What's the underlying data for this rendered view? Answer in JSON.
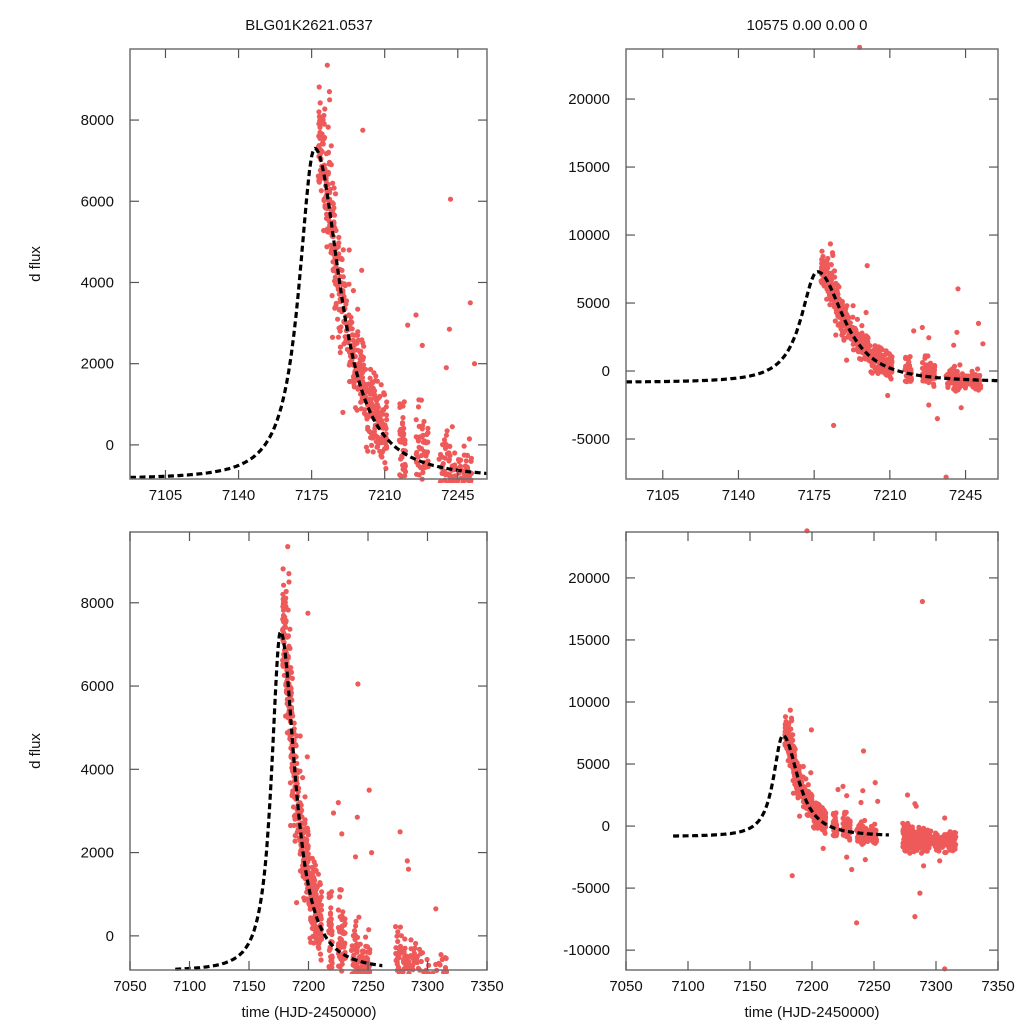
{
  "figure": {
    "object_name": "BLG01K2621.0537",
    "fit_summary": "10575  0.00  0.00  0",
    "point_color": "#ee5a5a",
    "model_color": "#000000"
  },
  "chart_data": [
    {
      "id": "top-left",
      "type": "scatter",
      "title": "BLG01K2621.0537",
      "xlabel": "",
      "ylabel": "d flux",
      "xlim": [
        7088,
        7259
      ],
      "ylim": [
        -840,
        9750
      ],
      "xticks": [
        7105,
        7140,
        7175,
        7210,
        7245
      ],
      "xtick_labels": [
        "7105",
        "7140",
        "7175",
        "7210",
        "7245"
      ],
      "yticks": [
        0,
        2000,
        4000,
        6000,
        8000
      ],
      "ytick_labels": [
        "0",
        "2000",
        "4000",
        "6000",
        "8000"
      ],
      "grid": false,
      "legend": "none",
      "model": {
        "label": "microlensing fit",
        "t0": 7176.5,
        "peak": 7300,
        "baseline": -840,
        "tE_rise": 9.5,
        "tE_fall": 11.5,
        "style": "dashed",
        "x_range": [
          7088,
          7259
        ]
      },
      "series_ref": "observations"
    },
    {
      "id": "top-right",
      "type": "scatter",
      "title": "10575  0.00  0.00  0",
      "xlabel": "",
      "ylabel": "",
      "xlim": [
        7088,
        7260
      ],
      "ylim": [
        -7940,
        23680
      ],
      "xticks": [
        7105,
        7140,
        7175,
        7210,
        7245
      ],
      "xtick_labels": [
        "7105",
        "7140",
        "7175",
        "7210",
        "7245"
      ],
      "yticks": [
        -5000,
        0,
        5000,
        10000,
        15000,
        20000
      ],
      "ytick_labels": [
        "-5000",
        "0",
        "5000",
        "10000",
        "15000",
        "20000"
      ],
      "grid": false,
      "legend": "none",
      "model": {
        "label": "microlensing fit",
        "t0": 7176.5,
        "peak": 7300,
        "baseline": -840,
        "tE_rise": 9.5,
        "tE_fall": 11.5,
        "style": "dashed",
        "x_range": [
          7088,
          7260
        ]
      },
      "series_ref": "observations"
    },
    {
      "id": "bottom-left",
      "type": "scatter",
      "title": "",
      "xlabel": "time (HJD-2450000)",
      "ylabel": "d flux",
      "xlim": [
        7050,
        7350
      ],
      "ylim": [
        -820,
        9700
      ],
      "xticks": [
        7050,
        7100,
        7150,
        7200,
        7250,
        7300,
        7350
      ],
      "xtick_labels": [
        "7050",
        "7100",
        "7150",
        "7200",
        "7250",
        "7300",
        "7350"
      ],
      "yticks": [
        0,
        2000,
        4000,
        6000,
        8000
      ],
      "ytick_labels": [
        "0",
        "2000",
        "4000",
        "6000",
        "8000"
      ],
      "grid": false,
      "legend": "none",
      "model": {
        "label": "microlensing fit",
        "t0": 7176.5,
        "peak": 7300,
        "baseline": -840,
        "tE_rise": 9.5,
        "tE_fall": 11.5,
        "style": "dashed",
        "x_range": [
          7088,
          7262
        ]
      },
      "series_ref": "observations"
    },
    {
      "id": "bottom-right",
      "type": "scatter",
      "title": "",
      "xlabel": "time (HJD-2450000)",
      "ylabel": "",
      "xlim": [
        7050,
        7350
      ],
      "ylim": [
        -11600,
        23700
      ],
      "xticks": [
        7050,
        7100,
        7150,
        7200,
        7250,
        7300,
        7350
      ],
      "xtick_labels": [
        "7050",
        "7100",
        "7150",
        "7200",
        "7250",
        "7300",
        "7350"
      ],
      "yticks": [
        -10000,
        -5000,
        0,
        5000,
        10000,
        15000,
        20000
      ],
      "ytick_labels": [
        "-10000",
        "-5000",
        "0",
        "5000",
        "10000",
        "15000",
        "20000"
      ],
      "grid": false,
      "legend": "none",
      "model": {
        "label": "microlensing fit",
        "t0": 7176.5,
        "peak": 7300,
        "baseline": -840,
        "tE_rise": 9.5,
        "tE_fall": 11.5,
        "style": "dashed",
        "x_range": [
          7088,
          7262
        ]
      },
      "series_ref": "observations"
    }
  ],
  "observations": {
    "description": "observed photometry points (HJD-2450000, d flux); clusters are nightly groups with spread",
    "clusters": [
      {
        "t": [
          7178,
          7180
        ],
        "center_offset": 300,
        "spread": 600,
        "n": 40
      },
      {
        "t": [
          7180,
          7183
        ],
        "center_offset": 200,
        "spread": 700,
        "n": 50
      },
      {
        "t": [
          7183,
          7186
        ],
        "center_offset": 0,
        "spread": 800,
        "n": 50
      },
      {
        "t": [
          7186,
          7189
        ],
        "center_offset": 0,
        "spread": 700,
        "n": 40
      },
      {
        "t": [
          7189,
          7193
        ],
        "center_offset": 100,
        "spread": 600,
        "n": 40
      },
      {
        "t": [
          7193,
          7196
        ],
        "center_offset": 150,
        "spread": 500,
        "n": 40
      },
      {
        "t": [
          7196,
          7199
        ],
        "center_offset": 200,
        "spread": 550,
        "n": 35
      },
      {
        "t": [
          7199,
          7202
        ],
        "center_offset": 300,
        "spread": 550,
        "n": 40
      },
      {
        "t": [
          7202,
          7206
        ],
        "center_offset": 250,
        "spread": 500,
        "n": 60
      },
      {
        "t": [
          7206,
          7211
        ],
        "center_offset": 150,
        "spread": 450,
        "n": 70
      },
      {
        "t": [
          7217,
          7220
        ],
        "center_offset": 100,
        "spread": 500,
        "n": 45
      },
      {
        "t": [
          7225,
          7231
        ],
        "center_offset": 150,
        "spread": 550,
        "n": 55
      },
      {
        "t": [
          7236,
          7252
        ],
        "center_offset": 0,
        "spread": 420,
        "n": 110
      },
      {
        "t": [
          7273,
          7281
        ],
        "center_offset": -300,
        "spread": 500,
        "n": 80
      },
      {
        "t": [
          7281,
          7296
        ],
        "center_offset": -400,
        "spread": 450,
        "n": 110
      },
      {
        "t": [
          7296,
          7316
        ],
        "center_offset": -500,
        "spread": 450,
        "n": 110
      }
    ],
    "outliers": [
      {
        "t": 7182.5,
        "f": 9350
      },
      {
        "t": 7183.5,
        "f": 8700
      },
      {
        "t": 7183.6,
        "f": 8500
      },
      {
        "t": 7179,
        "f": 7900
      },
      {
        "t": 7181,
        "f": 7900
      },
      {
        "t": 7199.5,
        "f": 7750
      },
      {
        "t": 7241.5,
        "f": 6050
      },
      {
        "t": 7193,
        "f": 4800
      },
      {
        "t": 7190,
        "f": 3800
      },
      {
        "t": 7195,
        "f": 3800
      },
      {
        "t": 7199,
        "f": 4300
      },
      {
        "t": 7197,
        "f": 2700
      },
      {
        "t": 7221,
        "f": 2950
      },
      {
        "t": 7225,
        "f": 3200
      },
      {
        "t": 7241,
        "f": 2850
      },
      {
        "t": 7251,
        "f": 3500
      },
      {
        "t": 7253,
        "f": 2000
      },
      {
        "t": 7228,
        "f": 2450
      },
      {
        "t": 7239.5,
        "f": 1900
      },
      {
        "t": 7185,
        "f": 2650
      },
      {
        "t": 7190,
        "f": 800
      },
      {
        "t": 7277,
        "f": 2500
      },
      {
        "t": 7283,
        "f": 1800
      },
      {
        "t": 7284,
        "f": 1600
      },
      {
        "t": 7307,
        "f": 650
      },
      {
        "t": 7184,
        "f": -4000
      },
      {
        "t": 7232,
        "f": -3500
      },
      {
        "t": 7236,
        "f": -7800
      },
      {
        "t": 7196,
        "f": 23800
      },
      {
        "t": 7289,
        "f": 18100
      },
      {
        "t": 7283,
        "f": -7300
      },
      {
        "t": 7307,
        "f": -11500
      },
      {
        "t": 7209,
        "f": -1800
      },
      {
        "t": 7228,
        "f": -2500
      },
      {
        "t": 7243,
        "f": -2700
      },
      {
        "t": 7287,
        "f": -5400
      },
      {
        "t": 7290,
        "f": -3200
      },
      {
        "t": 7303,
        "f": -2800
      }
    ]
  }
}
